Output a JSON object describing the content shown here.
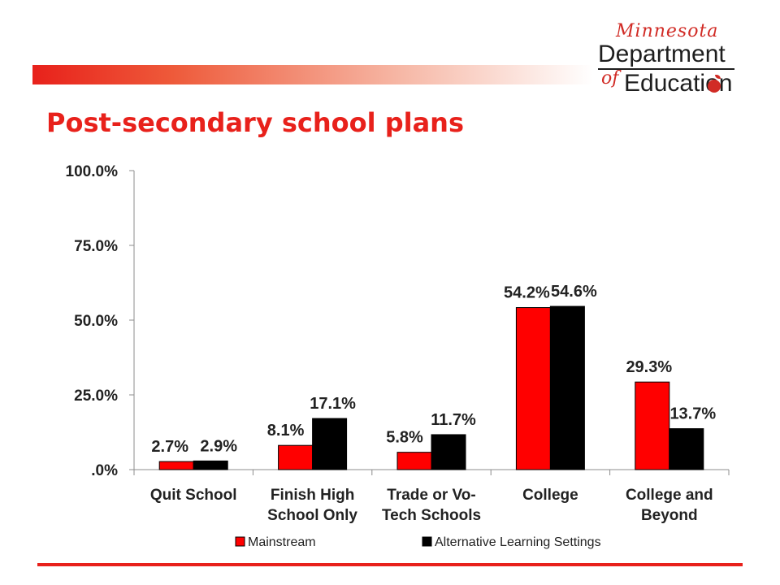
{
  "branding": {
    "logo_state": "Minnesota",
    "logo_line1": "Department",
    "logo_of": "of",
    "logo_line2": "Education"
  },
  "slide": {
    "title": "Post-secondary school plans"
  },
  "colors": {
    "accent": "#e8211b",
    "mainstream": "#ff0000",
    "alternative": "#000000"
  },
  "chart_data": {
    "type": "bar",
    "title": "",
    "xlabel": "",
    "ylabel": "",
    "categories": [
      [
        "Quit School"
      ],
      [
        "Finish High",
        "School Only"
      ],
      [
        "Trade or Vo-",
        "Tech Schools"
      ],
      [
        "College"
      ],
      [
        "College and",
        "Beyond"
      ]
    ],
    "series": [
      {
        "name": "Mainstream",
        "color": "#ff0000",
        "values": [
          2.7,
          8.1,
          5.8,
          54.2,
          29.3
        ],
        "labels": [
          "2.7%",
          "8.1%",
          "5.8%",
          "54.2%",
          "29.3%"
        ]
      },
      {
        "name": "Alternative Learning Settings",
        "color": "#000000",
        "values": [
          2.9,
          17.1,
          11.7,
          54.6,
          13.7
        ],
        "labels": [
          "2.9%",
          "17.1%",
          "11.7%",
          "54.6%",
          "13.7%"
        ]
      }
    ],
    "ylim": [
      0,
      100
    ],
    "yticks": [
      0,
      25,
      50,
      75,
      100
    ],
    "ytick_labels": [
      ".0%",
      "25.0%",
      "50.0%",
      "75.0%",
      "100.0%"
    ],
    "grid": false,
    "legend_position": "bottom"
  }
}
